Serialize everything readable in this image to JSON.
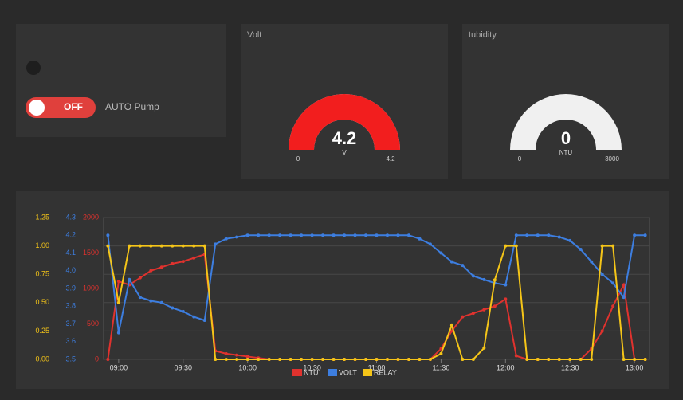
{
  "switch": {
    "label": "OFF",
    "text": "AUTO Pump"
  },
  "gauges": [
    {
      "title": "Volt",
      "value": 4.2,
      "unit": "V",
      "min": 0,
      "max": 4.2,
      "color": "#f21e1e"
    },
    {
      "title": "tubidity",
      "value": 0,
      "unit": "NTU",
      "min": 0,
      "max": 3000,
      "color": "#f21e1e"
    }
  ],
  "chart_data": {
    "type": "line",
    "x": [
      "08:55",
      "09:00",
      "09:05",
      "09:10",
      "09:15",
      "09:20",
      "09:25",
      "09:30",
      "09:35",
      "09:40",
      "09:45",
      "09:50",
      "09:55",
      "10:00",
      "10:05",
      "10:10",
      "10:15",
      "10:20",
      "10:25",
      "10:30",
      "10:35",
      "10:40",
      "10:45",
      "10:50",
      "10:55",
      "11:00",
      "11:05",
      "11:10",
      "11:15",
      "11:20",
      "11:25",
      "11:30",
      "11:35",
      "11:40",
      "11:45",
      "11:50",
      "11:55",
      "12:00",
      "12:05",
      "12:10",
      "12:15",
      "12:20",
      "12:25",
      "12:30",
      "12:35",
      "12:40",
      "12:45",
      "12:50",
      "12:55",
      "13:00",
      "13:05"
    ],
    "xlim": [
      "08:53",
      "13:07"
    ],
    "xticks": [
      "09:00",
      "09:30",
      "10:00",
      "10:30",
      "11:00",
      "11:30",
      "12:00",
      "12:30",
      "13:00"
    ],
    "ylim": [
      0,
      1.25
    ],
    "yticks": [
      {
        "value": 0,
        "label": "0.00"
      },
      0.25,
      {
        "value": 0.5,
        "label": "0.50"
      },
      0.75,
      {
        "value": 1,
        "label": "1.00"
      },
      1.25
    ],
    "y2lim": [
      3.5,
      4.3
    ],
    "y2ticks": [
      3.5,
      3.6,
      3.7,
      3.8,
      3.9,
      {
        "value": 4,
        "label": "4.0"
      },
      4.1,
      4.2,
      4.3
    ],
    "y3lim": [
      0,
      2000
    ],
    "y3ticks": [
      0,
      500,
      1000,
      1500,
      2000
    ],
    "grid": true,
    "series": [
      {
        "name": "NTU",
        "color": "#e0322e",
        "axis": "y3",
        "values": [
          0,
          1100,
          1050,
          1150,
          1250,
          1300,
          1350,
          1380,
          1430,
          1480,
          120,
          80,
          60,
          40,
          20,
          0,
          0,
          0,
          0,
          0,
          0,
          0,
          0,
          0,
          0,
          0,
          0,
          0,
          0,
          0,
          0,
          150,
          400,
          600,
          650,
          700,
          750,
          850,
          50,
          0,
          0,
          0,
          0,
          0,
          0,
          150,
          400,
          750,
          1050,
          0,
          0
        ]
      },
      {
        "name": "VOLT",
        "color": "#3d7ee0",
        "axis": "y2",
        "values": [
          4.2,
          3.65,
          3.95,
          3.85,
          3.83,
          3.82,
          3.79,
          3.77,
          3.74,
          3.72,
          4.15,
          4.18,
          4.19,
          4.2,
          4.2,
          4.2,
          4.2,
          4.2,
          4.2,
          4.2,
          4.2,
          4.2,
          4.2,
          4.2,
          4.2,
          4.2,
          4.2,
          4.2,
          4.2,
          4.18,
          4.15,
          4.1,
          4.05,
          4.03,
          3.97,
          3.95,
          3.93,
          3.92,
          4.2,
          4.2,
          4.2,
          4.2,
          4.19,
          4.17,
          4.12,
          4.05,
          3.98,
          3.93,
          3.85,
          4.2,
          4.2
        ]
      },
      {
        "name": "RELAY",
        "color": "#f5c518",
        "axis": "y",
        "values": [
          1,
          0.5,
          1,
          1,
          1,
          1,
          1,
          1,
          1,
          1,
          0,
          0,
          0,
          0,
          0,
          0,
          0,
          0,
          0,
          0,
          0,
          0,
          0,
          0,
          0,
          0,
          0,
          0,
          0,
          0,
          0,
          0.05,
          0.3,
          0,
          0,
          0.1,
          0.7,
          1,
          1,
          0,
          0,
          0,
          0,
          0,
          0,
          0,
          1,
          1,
          0,
          0,
          0
        ]
      }
    ]
  }
}
